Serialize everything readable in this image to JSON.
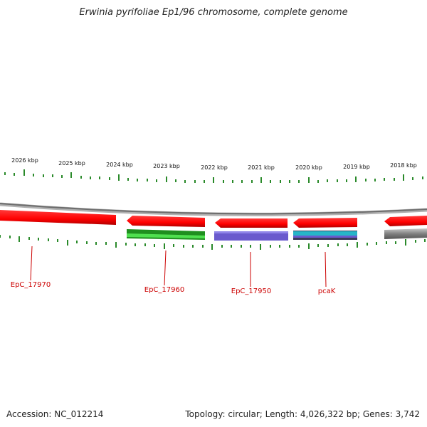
{
  "title": "Erwinia pyrifoliae Ep1/96 chromosome, complete genome",
  "footer": {
    "accession": "Accession: NC_012214",
    "summary": "Topology: circular; Length: 4,026,322 bp; Genes: 3,742"
  },
  "scale_labels": [
    "2026 kbp",
    "2025 kbp",
    "2024 kbp",
    "2023 kbp",
    "2022 kbp",
    "2021 kbp",
    "2020 kbp",
    "2019 kbp",
    "2018 kbp"
  ],
  "gene_labels": [
    "EpC_17970",
    "EpC_17960",
    "EpC_17950",
    "pcaK"
  ],
  "colors": {
    "gene_forward": "#ff0000",
    "cds_green": "#2db82d",
    "cds_blue": "#6a5acd",
    "cds_cyan": "#26b5c8",
    "backbone": "#888888",
    "ticks": "#2a8a2a",
    "label": "#cc0000"
  }
}
